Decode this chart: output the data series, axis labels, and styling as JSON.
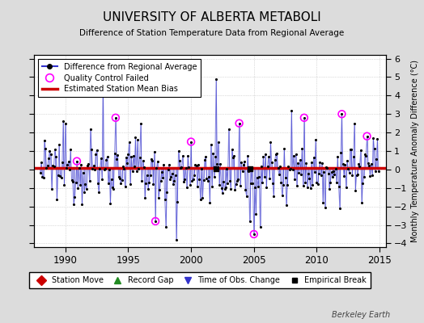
{
  "title": "UNIVERSITY OF ALBERTA METABOLI",
  "subtitle": "Difference of Station Temperature Data from Regional Average",
  "ylabel": "Monthly Temperature Anomaly Difference (°C)",
  "xlabel_years": [
    1990,
    1995,
    2000,
    2005,
    2010,
    2015
  ],
  "xlim": [
    1987.5,
    2015.5
  ],
  "ylim": [
    -4.2,
    6.2
  ],
  "yticks": [
    -4,
    -3,
    -2,
    -1,
    0,
    1,
    2,
    3,
    4,
    5,
    6
  ],
  "bias_line_y": 0.1,
  "background_color": "#dcdcdc",
  "plot_bg_color": "#ffffff",
  "line_color": "#3333cc",
  "bias_color": "#cc0000",
  "qc_color": "#ff00ff",
  "marker_color": "#000000",
  "watermark": "Berkeley Earth",
  "legend_items": [
    {
      "label": "Difference from Regional Average"
    },
    {
      "label": "Quality Control Failed"
    },
    {
      "label": "Estimated Station Mean Bias"
    }
  ],
  "bottom_legend": [
    {
      "label": "Station Move",
      "color": "#cc0000",
      "marker": "D"
    },
    {
      "label": "Record Gap",
      "color": "#228B22",
      "marker": "^"
    },
    {
      "label": "Time of Obs. Change",
      "color": "#3333cc",
      "marker": "v"
    },
    {
      "label": "Empirical Break",
      "color": "#000000",
      "marker": "s"
    }
  ]
}
